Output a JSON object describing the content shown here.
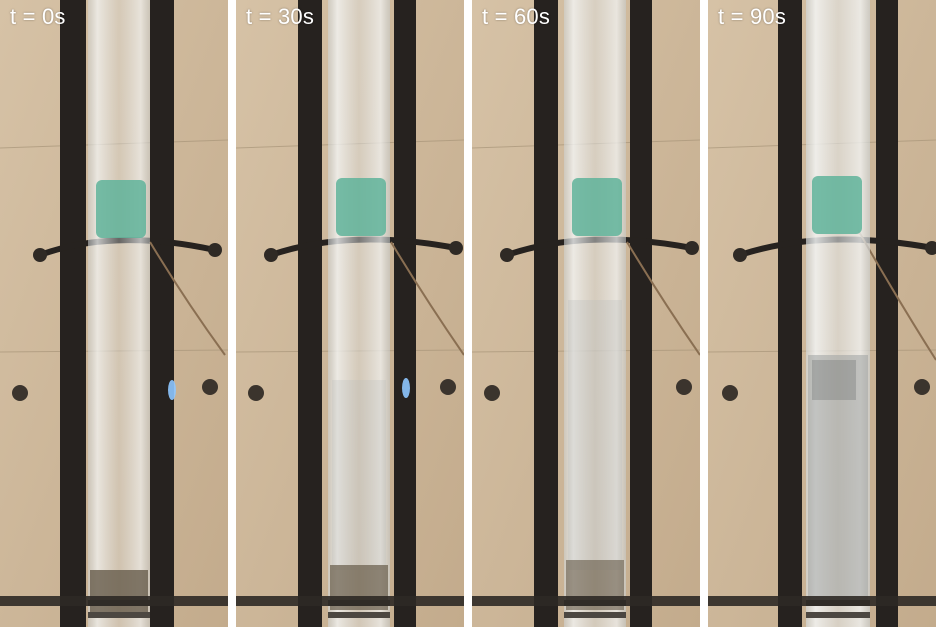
{
  "figure": {
    "panels": [
      {
        "time_label": "t = 0s",
        "turbidity": 0.0
      },
      {
        "time_label": "t = 30s",
        "turbidity": 0.25
      },
      {
        "time_label": "t = 60s",
        "turbidity": 0.35
      },
      {
        "time_label": "t = 90s",
        "turbidity": 0.75
      }
    ]
  },
  "colors": {
    "background": "#ffffff",
    "wood": "#cdb79a",
    "rail": "#26221f",
    "tube_glass": "#d9dcdc",
    "tape": "#5fb39a",
    "sediment": "#6d6352"
  }
}
